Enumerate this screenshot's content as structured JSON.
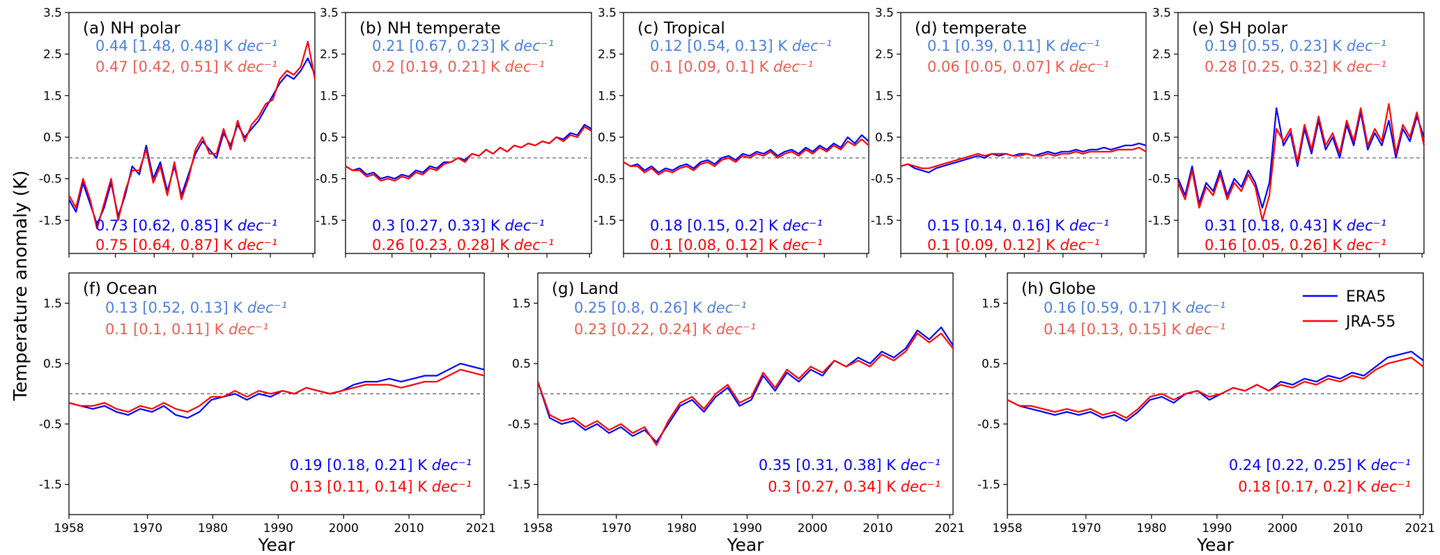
{
  "figure": {
    "ylabel": "Temperature anomaly (K)",
    "xlabel": "Year",
    "colors": {
      "era5": "#0000ff",
      "jra55": "#ff0000",
      "era5_light": "#4a7fe0",
      "jra55_light": "#f05a50",
      "zero_line": "#555555"
    }
  },
  "legend": [
    {
      "name": "ERA5",
      "color": "#0000ff"
    },
    {
      "name": "JRA-55",
      "color": "#ff0000"
    }
  ],
  "chart_data": [
    {
      "type": "line",
      "id": "a",
      "title": "(a) NH polar",
      "row": 1,
      "xlim": [
        1958,
        2021.5
      ],
      "ylim": [
        -2.3,
        3.5
      ],
      "yticks": [
        "3.5",
        "2.5",
        "1.5",
        "0.5",
        "-0.5",
        "-1.5"
      ],
      "yticks_values": [
        3.5,
        2.5,
        1.5,
        0.5,
        -0.5,
        -1.5
      ],
      "x_start": 1958,
      "x_end": 2021.5,
      "series": [
        {
          "name": "ERA5",
          "values": [
            -1.0,
            -1.3,
            -0.6,
            -1.1,
            -1.6,
            -1.2,
            -0.6,
            -1.4,
            -0.9,
            -0.2,
            -0.4,
            0.3,
            -0.5,
            -0.1,
            -0.8,
            -0.2,
            -0.9,
            -0.4,
            0.1,
            0.4,
            0.2,
            0.0,
            0.6,
            0.3,
            0.8,
            0.5,
            0.7,
            0.9,
            1.2,
            1.5,
            1.8,
            2.0,
            1.9,
            2.1,
            2.4,
            2.0
          ]
        },
        {
          "name": "JRA-55",
          "values": [
            -0.9,
            -1.2,
            -0.5,
            -1.0,
            -1.7,
            -1.1,
            -0.5,
            -1.5,
            -0.8,
            -0.3,
            -0.3,
            0.2,
            -0.6,
            -0.2,
            -0.9,
            -0.1,
            -1.0,
            -0.5,
            0.2,
            0.5,
            0.1,
            0.1,
            0.7,
            0.2,
            0.9,
            0.4,
            0.8,
            1.0,
            1.3,
            1.4,
            1.9,
            2.1,
            2.0,
            2.2,
            2.8,
            1.9
          ]
        }
      ],
      "trends": [
        "0.44 [1.48, 0.48] K dec⁻¹",
        "0.47 [0.42, 0.51] K dec⁻¹",
        "0.73 [0.62, 0.85] K dec⁻¹",
        "0.75 [0.64, 0.87] K dec⁻¹"
      ]
    },
    {
      "type": "line",
      "id": "b",
      "title": "(b) NH temperate",
      "row": 1,
      "xlim": [
        1958,
        2021.5
      ],
      "ylim": [
        -2.3,
        3.5
      ],
      "yticks": [
        "3.5",
        "2.5",
        "1.5",
        "0.5",
        "-0.5",
        "-1.5"
      ],
      "yticks_values": [
        3.5,
        2.5,
        1.5,
        0.5,
        -0.5,
        -1.5
      ],
      "x_start": 1958,
      "x_end": 2021.5,
      "series": [
        {
          "name": "ERA5",
          "values": [
            -0.2,
            -0.3,
            -0.25,
            -0.4,
            -0.35,
            -0.5,
            -0.45,
            -0.5,
            -0.4,
            -0.45,
            -0.3,
            -0.35,
            -0.2,
            -0.25,
            -0.1,
            -0.1,
            0.0,
            -0.05,
            0.1,
            0.05,
            0.2,
            0.1,
            0.25,
            0.15,
            0.3,
            0.25,
            0.35,
            0.3,
            0.4,
            0.35,
            0.5,
            0.45,
            0.6,
            0.55,
            0.8,
            0.7
          ]
        },
        {
          "name": "JRA-55",
          "values": [
            -0.2,
            -0.3,
            -0.3,
            -0.45,
            -0.4,
            -0.55,
            -0.5,
            -0.55,
            -0.45,
            -0.5,
            -0.35,
            -0.4,
            -0.25,
            -0.3,
            -0.15,
            -0.1,
            0.0,
            -0.1,
            0.1,
            0.05,
            0.2,
            0.1,
            0.25,
            0.15,
            0.3,
            0.25,
            0.35,
            0.3,
            0.4,
            0.35,
            0.5,
            0.4,
            0.55,
            0.5,
            0.75,
            0.65
          ]
        }
      ],
      "trends": [
        "0.21 [0.67, 0.23] K dec⁻¹",
        "0.2 [0.19, 0.21] K dec⁻¹",
        "0.3 [0.27, 0.33] K dec⁻¹",
        "0.26 [0.23, 0.28] K dec⁻¹"
      ]
    },
    {
      "type": "line",
      "id": "c",
      "title": "(c) Tropical",
      "row": 1,
      "xlim": [
        1958,
        2021.5
      ],
      "ylim": [
        -2.3,
        3.5
      ],
      "yticks": [
        "3.5",
        "2.5",
        "1.5",
        "0.5",
        "-0.5",
        "-1.5"
      ],
      "yticks_values": [
        3.5,
        2.5,
        1.5,
        0.5,
        -0.5,
        -1.5
      ],
      "x_start": 1958,
      "x_end": 2021.5,
      "series": [
        {
          "name": "ERA5",
          "values": [
            -0.1,
            -0.2,
            -0.15,
            -0.3,
            -0.2,
            -0.35,
            -0.25,
            -0.3,
            -0.2,
            -0.15,
            -0.25,
            -0.1,
            -0.05,
            -0.15,
            0.0,
            0.05,
            -0.05,
            0.1,
            0.05,
            0.15,
            0.1,
            0.2,
            0.05,
            0.15,
            0.2,
            0.1,
            0.25,
            0.15,
            0.3,
            0.2,
            0.35,
            0.25,
            0.5,
            0.35,
            0.55,
            0.4
          ]
        },
        {
          "name": "JRA-55",
          "values": [
            -0.1,
            -0.2,
            -0.2,
            -0.35,
            -0.25,
            -0.4,
            -0.3,
            -0.35,
            -0.25,
            -0.2,
            -0.3,
            -0.15,
            -0.1,
            -0.2,
            -0.05,
            0.0,
            -0.1,
            0.05,
            0.0,
            0.1,
            0.05,
            0.15,
            0.0,
            0.1,
            0.15,
            0.05,
            0.2,
            0.1,
            0.25,
            0.15,
            0.3,
            0.2,
            0.4,
            0.3,
            0.45,
            0.3
          ]
        }
      ],
      "trends": [
        "0.12 [0.54, 0.13] K dec⁻¹",
        "0.1 [0.09, 0.1] K dec⁻¹",
        "0.18 [0.15, 0.2] K dec⁻¹",
        "0.1 [0.08, 0.12] K dec⁻¹"
      ]
    },
    {
      "type": "line",
      "id": "d",
      "title": "(d) temperate",
      "row": 1,
      "xlim": [
        1958,
        2021.5
      ],
      "ylim": [
        -2.3,
        3.5
      ],
      "yticks": [
        "3.5",
        "2.5",
        "1.5",
        "0.5",
        "-0.5",
        "-1.5"
      ],
      "yticks_values": [
        3.5,
        2.5,
        1.5,
        0.5,
        -0.5,
        -1.5
      ],
      "x_start": 1958,
      "x_end": 2021.5,
      "series": [
        {
          "name": "ERA5",
          "values": [
            -0.2,
            -0.15,
            -0.25,
            -0.3,
            -0.35,
            -0.25,
            -0.2,
            -0.15,
            -0.1,
            -0.05,
            0.0,
            0.05,
            0.0,
            0.1,
            0.05,
            0.1,
            0.05,
            0.1,
            0.1,
            0.05,
            0.1,
            0.15,
            0.1,
            0.15,
            0.15,
            0.2,
            0.15,
            0.2,
            0.2,
            0.25,
            0.2,
            0.25,
            0.3,
            0.3,
            0.35,
            0.3
          ]
        },
        {
          "name": "JRA-55",
          "values": [
            -0.2,
            -0.15,
            -0.2,
            -0.25,
            -0.25,
            -0.2,
            -0.15,
            -0.1,
            -0.05,
            0.0,
            0.05,
            0.1,
            0.05,
            0.1,
            0.1,
            0.1,
            0.05,
            0.05,
            0.1,
            0.05,
            0.05,
            0.1,
            0.05,
            0.1,
            0.1,
            0.15,
            0.1,
            0.15,
            0.15,
            0.15,
            0.15,
            0.2,
            0.2,
            0.2,
            0.25,
            0.15
          ]
        }
      ],
      "trends": [
        "0.1 [0.39, 0.11] K dec⁻¹",
        "0.06 [0.05, 0.07] K dec⁻¹",
        "0.15 [0.14, 0.16] K dec⁻¹",
        "0.1 [0.09, 0.12] K dec⁻¹"
      ]
    },
    {
      "type": "line",
      "id": "e",
      "title": "(e) SH polar",
      "row": 1,
      "xlim": [
        1958,
        2021.5
      ],
      "ylim": [
        -2.3,
        3.5
      ],
      "yticks": [
        "3.5",
        "2.5",
        "1.5",
        "0.5",
        "-0.5",
        "-1.5"
      ],
      "yticks_values": [
        3.5,
        2.5,
        1.5,
        0.5,
        -0.5,
        -1.5
      ],
      "x_start": 1958,
      "x_end": 2021.5,
      "series": [
        {
          "name": "ERA5",
          "values": [
            -0.5,
            -0.9,
            -0.2,
            -1.1,
            -0.6,
            -0.8,
            -0.3,
            -0.9,
            -0.5,
            -0.7,
            -0.3,
            -0.6,
            -1.2,
            -0.6,
            1.2,
            0.3,
            0.6,
            -0.2,
            0.7,
            0.1,
            0.9,
            0.2,
            0.5,
            0.0,
            0.8,
            0.3,
            1.1,
            0.2,
            0.6,
            0.3,
            0.9,
            0.0,
            0.7,
            0.4,
            1.0,
            0.5
          ]
        },
        {
          "name": "JRA-55",
          "values": [
            -0.6,
            -1.0,
            -0.3,
            -1.2,
            -0.7,
            -0.9,
            -0.4,
            -1.0,
            -0.6,
            -0.8,
            -0.4,
            -0.7,
            -1.5,
            -0.9,
            0.7,
            0.4,
            0.7,
            -0.1,
            0.8,
            0.2,
            1.0,
            0.3,
            0.6,
            0.1,
            0.9,
            0.4,
            1.2,
            0.3,
            0.7,
            0.4,
            1.3,
            0.1,
            0.8,
            0.5,
            1.1,
            0.3
          ]
        }
      ],
      "trends": [
        "0.19 [0.55, 0.23] K dec⁻¹",
        "0.28 [0.25, 0.32] K dec⁻¹",
        "0.31 [0.18, 0.43] K dec⁻¹",
        "0.16 [0.05, 0.26] K dec⁻¹"
      ]
    },
    {
      "type": "line",
      "id": "f",
      "title": "(f) Ocean",
      "row": 2,
      "xlim": [
        1958,
        2021.5
      ],
      "ylim": [
        -2.0,
        2.0
      ],
      "yticks": [
        "1.5",
        "0.5",
        "-0.5",
        "-1.5"
      ],
      "yticks_values": [
        1.5,
        0.5,
        -0.5,
        -1.5
      ],
      "x_start": 1958,
      "x_end": 2021.5,
      "series": [
        {
          "name": "ERA5",
          "values": [
            -0.15,
            -0.2,
            -0.25,
            -0.2,
            -0.3,
            -0.35,
            -0.25,
            -0.3,
            -0.2,
            -0.35,
            -0.4,
            -0.3,
            -0.1,
            -0.05,
            0.0,
            -0.1,
            0.0,
            -0.05,
            0.05,
            0.0,
            0.1,
            0.05,
            0.0,
            0.05,
            0.15,
            0.2,
            0.2,
            0.25,
            0.2,
            0.25,
            0.3,
            0.3,
            0.4,
            0.5,
            0.45,
            0.4
          ]
        },
        {
          "name": "JRA-55",
          "values": [
            -0.15,
            -0.2,
            -0.2,
            -0.15,
            -0.25,
            -0.3,
            -0.2,
            -0.25,
            -0.15,
            -0.25,
            -0.3,
            -0.2,
            -0.05,
            -0.05,
            0.05,
            -0.05,
            0.05,
            0.0,
            0.05,
            0.0,
            0.1,
            0.05,
            0.0,
            0.05,
            0.1,
            0.15,
            0.15,
            0.15,
            0.1,
            0.15,
            0.2,
            0.2,
            0.3,
            0.4,
            0.35,
            0.3
          ]
        }
      ],
      "trends": [
        "0.13 [0.52, 0.13] K dec⁻¹",
        "0.1 [0.1, 0.11] K dec⁻¹",
        "0.19 [0.18, 0.21] K dec⁻¹",
        "0.13 [0.11, 0.14] K dec⁻¹"
      ]
    },
    {
      "type": "line",
      "id": "g",
      "title": "(g) Land",
      "row": 2,
      "xlim": [
        1958,
        2021.5
      ],
      "ylim": [
        -2.0,
        2.0
      ],
      "yticks": [
        "1.5",
        "0.5",
        "-0.5",
        "-1.5"
      ],
      "yticks_values": [
        1.5,
        0.5,
        -0.5,
        -1.5
      ],
      "x_start": 1958,
      "x_end": 2021.5,
      "series": [
        {
          "name": "ERA5",
          "values": [
            0.2,
            -0.4,
            -0.5,
            -0.45,
            -0.6,
            -0.5,
            -0.65,
            -0.55,
            -0.7,
            -0.6,
            -0.8,
            -0.5,
            -0.2,
            -0.1,
            -0.3,
            -0.05,
            0.1,
            -0.2,
            -0.1,
            0.3,
            0.05,
            0.35,
            0.2,
            0.4,
            0.3,
            0.55,
            0.45,
            0.6,
            0.5,
            0.7,
            0.6,
            0.75,
            1.05,
            0.9,
            1.1,
            0.8
          ]
        },
        {
          "name": "JRA-55",
          "values": [
            0.2,
            -0.35,
            -0.45,
            -0.4,
            -0.55,
            -0.45,
            -0.6,
            -0.5,
            -0.65,
            -0.55,
            -0.85,
            -0.45,
            -0.15,
            -0.05,
            -0.25,
            0.0,
            0.15,
            -0.15,
            -0.05,
            0.35,
            0.1,
            0.4,
            0.25,
            0.45,
            0.35,
            0.55,
            0.45,
            0.55,
            0.45,
            0.65,
            0.55,
            0.7,
            1.0,
            0.85,
            1.0,
            0.75
          ]
        }
      ],
      "trends": [
        "0.25 [0.8, 0.26] K dec⁻¹",
        "0.23 [0.22, 0.24] K dec⁻¹",
        "0.35 [0.31, 0.38] K dec⁻¹",
        "0.3 [0.27, 0.34] K dec⁻¹"
      ]
    },
    {
      "type": "line",
      "id": "h",
      "title": "(h) Globe",
      "row": 2,
      "xlim": [
        1958,
        2021.5
      ],
      "ylim": [
        -2.0,
        2.0
      ],
      "yticks": [
        "1.5",
        "0.5",
        "-0.5",
        "-1.5"
      ],
      "yticks_values": [
        1.5,
        0.5,
        -0.5,
        -1.5
      ],
      "x_start": 1958,
      "x_end": 2021.5,
      "series": [
        {
          "name": "ERA5",
          "values": [
            -0.1,
            -0.2,
            -0.25,
            -0.3,
            -0.35,
            -0.3,
            -0.35,
            -0.3,
            -0.4,
            -0.35,
            -0.45,
            -0.3,
            -0.1,
            -0.05,
            -0.15,
            0.0,
            0.05,
            -0.1,
            0.0,
            0.1,
            0.05,
            0.15,
            0.05,
            0.2,
            0.15,
            0.25,
            0.2,
            0.3,
            0.25,
            0.35,
            0.3,
            0.45,
            0.6,
            0.65,
            0.7,
            0.55
          ]
        },
        {
          "name": "JRA-55",
          "values": [
            -0.1,
            -0.2,
            -0.2,
            -0.25,
            -0.3,
            -0.25,
            -0.3,
            -0.25,
            -0.35,
            -0.3,
            -0.4,
            -0.25,
            -0.05,
            0.0,
            -0.1,
            0.0,
            0.05,
            -0.05,
            0.0,
            0.1,
            0.05,
            0.15,
            0.05,
            0.15,
            0.1,
            0.2,
            0.15,
            0.25,
            0.2,
            0.3,
            0.25,
            0.4,
            0.5,
            0.55,
            0.6,
            0.45
          ]
        }
      ],
      "trends": [
        "0.16 [0.59, 0.17] K dec⁻¹",
        "0.14 [0.13, 0.15] K dec⁻¹",
        "0.24 [0.22, 0.25] K dec⁻¹",
        "0.18 [0.17, 0.2] K dec⁻¹"
      ]
    }
  ],
  "xticks": [
    "1958",
    "1970",
    "1980",
    "1990",
    "2000",
    "2010",
    "2021"
  ],
  "xticks_values": [
    1958,
    1970,
    1980,
    1990,
    2000,
    2010,
    2021
  ]
}
